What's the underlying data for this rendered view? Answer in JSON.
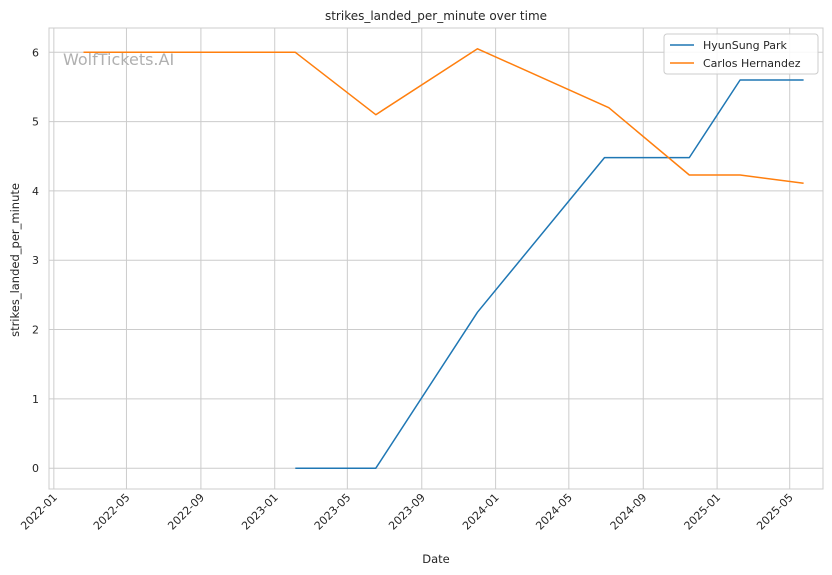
{
  "chart_data": {
    "type": "line",
    "title": "strikes_landed_per_minute over time",
    "xlabel": "Date",
    "ylabel": "strikes_landed_per_minute",
    "watermark": "WolfTickets.AI",
    "x_axis_type": "date",
    "xlim": [
      "2021-12-24",
      "2025-06-25"
    ],
    "ylim": [
      -0.3,
      6.35
    ],
    "x_ticks": [
      "2022-01",
      "2022-05",
      "2022-09",
      "2023-01",
      "2023-05",
      "2023-09",
      "2024-01",
      "2024-05",
      "2024-09",
      "2025-01",
      "2025-05"
    ],
    "y_ticks": [
      0,
      1,
      2,
      3,
      4,
      5,
      6
    ],
    "grid": true,
    "legend_position": "top-right",
    "series": [
      {
        "name": "HyunSung Park",
        "color": "#1f77b4",
        "points": [
          {
            "x": "2023-02-04",
            "y": 0
          },
          {
            "x": "2023-06-17",
            "y": 0
          },
          {
            "x": "2023-12-02",
            "y": 2.25
          },
          {
            "x": "2024-06-29",
            "y": 4.48
          },
          {
            "x": "2024-11-16",
            "y": 4.48
          },
          {
            "x": "2025-02-08",
            "y": 5.6
          },
          {
            "x": "2025-05-24",
            "y": 5.6
          }
        ]
      },
      {
        "name": "Carlos Hernandez",
        "color": "#ff7f0e",
        "points": [
          {
            "x": "2022-02-19",
            "y": 6.0
          },
          {
            "x": "2023-02-04",
            "y": 6.0
          },
          {
            "x": "2023-06-17",
            "y": 5.1
          },
          {
            "x": "2023-12-02",
            "y": 6.05
          },
          {
            "x": "2024-07-06",
            "y": 5.2
          },
          {
            "x": "2024-11-16",
            "y": 4.23
          },
          {
            "x": "2025-02-08",
            "y": 4.23
          },
          {
            "x": "2025-05-24",
            "y": 4.11
          }
        ]
      }
    ]
  }
}
